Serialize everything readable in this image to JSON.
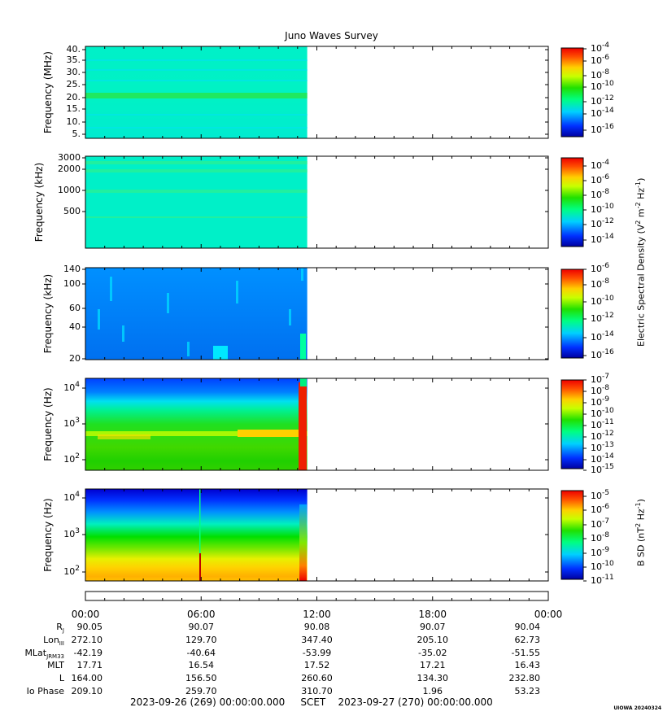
{
  "title": "Juno Waves Survey",
  "panels": [
    {
      "id": "p1",
      "ylabel": "Frequency (MHz)",
      "yticks": [
        {
          "label": "40."
        },
        {
          "label": "35."
        },
        {
          "label": "30."
        },
        {
          "label": "25."
        },
        {
          "label": "20."
        },
        {
          "label": "15."
        },
        {
          "label": "10."
        },
        {
          "label": "5."
        }
      ],
      "colorbar_ticks": [
        "-4",
        "-6",
        "-8",
        "-10",
        "-12",
        "-14",
        "-16"
      ],
      "data_end_hour": 11.5
    },
    {
      "id": "p2",
      "ylabel": "Frequency (kHz)",
      "yticks": [
        {
          "label": "3000"
        },
        {
          "label": "2000"
        },
        {
          "label": "1000"
        },
        {
          "label": "500"
        }
      ],
      "colorbar_ticks": [
        "-4",
        "-6",
        "-8",
        "-10",
        "-12",
        "-14"
      ],
      "data_end_hour": 11.5
    },
    {
      "id": "p3",
      "ylabel": "Frequency (kHz)",
      "yticks": [
        {
          "label": "140"
        },
        {
          "label": "100"
        },
        {
          "label": "60"
        },
        {
          "label": "40"
        },
        {
          "label": "20"
        }
      ],
      "colorbar_ticks": [
        "-6",
        "-8",
        "-10",
        "-12",
        "-14",
        "-16"
      ],
      "data_end_hour": 11.5
    },
    {
      "id": "p4",
      "ylabel": "Frequency (Hz)",
      "yticks": [
        {
          "exp": "4"
        },
        {
          "exp": "3"
        },
        {
          "exp": "2"
        }
      ],
      "colorbar_ticks": [
        "-7",
        "-8",
        "-9",
        "-10",
        "-11",
        "-12",
        "-13",
        "-14",
        "-15"
      ],
      "data_end_hour": 11.5
    },
    {
      "id": "p5",
      "ylabel": "Frequency (Hz)",
      "yticks": [
        {
          "exp": "4"
        },
        {
          "exp": "3"
        },
        {
          "exp": "2"
        }
      ],
      "colorbar_ticks": [
        "-5",
        "-6",
        "-7",
        "-8",
        "-9",
        "-10",
        "-11"
      ],
      "data_end_hour": 11.5
    }
  ],
  "colorbar_titles": {
    "electric": "Electric Spectral Density (V",
    "electric_sup1": "2",
    "electric_mid": " m",
    "electric_sup2": "-2",
    "electric_mid2": " Hz",
    "electric_sup3": "-1",
    "electric_end": ")",
    "magnetic": "B SD (nT",
    "magnetic_sup1": "2",
    "magnetic_mid": " Hz",
    "magnetic_sup2": "-1",
    "magnetic_end": ")"
  },
  "colorbar_base": "10",
  "time_axis": {
    "labels": [
      "00:00",
      "06:00",
      "12:00",
      "18:00",
      "00:00"
    ]
  },
  "ephemeris": {
    "rows": [
      {
        "label": "R",
        "sub": "J",
        "values": [
          "90.05",
          "90.07",
          "90.08",
          "90.07",
          "90.04"
        ]
      },
      {
        "label": "Lon",
        "sub": "III",
        "values": [
          "272.10",
          "129.70",
          "347.40",
          "205.10",
          "62.73"
        ]
      },
      {
        "label": "MLat",
        "sub": "JRM33",
        "values": [
          "-42.19",
          "-40.64",
          "-53.99",
          "-35.02",
          "-51.55"
        ]
      },
      {
        "label": "MLT",
        "sub": "",
        "values": [
          "17.71",
          "16.54",
          "17.52",
          "17.21",
          "16.43"
        ]
      },
      {
        "label": "L",
        "sub": "",
        "values": [
          "164.00",
          "156.50",
          "260.60",
          "134.30",
          "232.80"
        ]
      },
      {
        "label": "Io Phase",
        "sub": "",
        "values": [
          "209.10",
          "259.70",
          "310.70",
          "1.96",
          "53.23"
        ]
      }
    ]
  },
  "footer": "2023-09-26 (269) 00:00:00.000     SCET    2023-09-27 (270) 00:00:00.000",
  "stamp": "UIOWA 20240324",
  "chart_data": {
    "type": "heatmap",
    "title": "Juno Waves Survey",
    "x_range_hours": [
      0,
      24
    ],
    "x_tick_labels": [
      "00:00",
      "06:00",
      "12:00",
      "18:00",
      "00:00"
    ],
    "data_coverage_hours": [
      0,
      11.5
    ],
    "panels": [
      {
        "ylabel": "Frequency (MHz)",
        "ylim": [
          3,
          41
        ],
        "colorbar_exp_range": [
          -17,
          -4
        ]
      },
      {
        "ylabel": "Frequency (kHz)",
        "ylim": [
          150,
          3000
        ],
        "yscale": "log",
        "colorbar_exp_range": [
          -15,
          -3
        ]
      },
      {
        "ylabel": "Frequency (kHz)",
        "ylim": [
          20,
          140
        ],
        "yscale": "log",
        "colorbar_exp_range": [
          -16,
          -6
        ]
      },
      {
        "ylabel": "Frequency (Hz)",
        "ylim": [
          50,
          20000
        ],
        "yscale": "log",
        "colorbar_exp_range": [
          -15,
          -7
        ]
      },
      {
        "ylabel": "Frequency (Hz)",
        "ylim": [
          50,
          20000
        ],
        "yscale": "log",
        "colorbar_exp_range": [
          -11,
          -4.5
        ]
      }
    ]
  }
}
